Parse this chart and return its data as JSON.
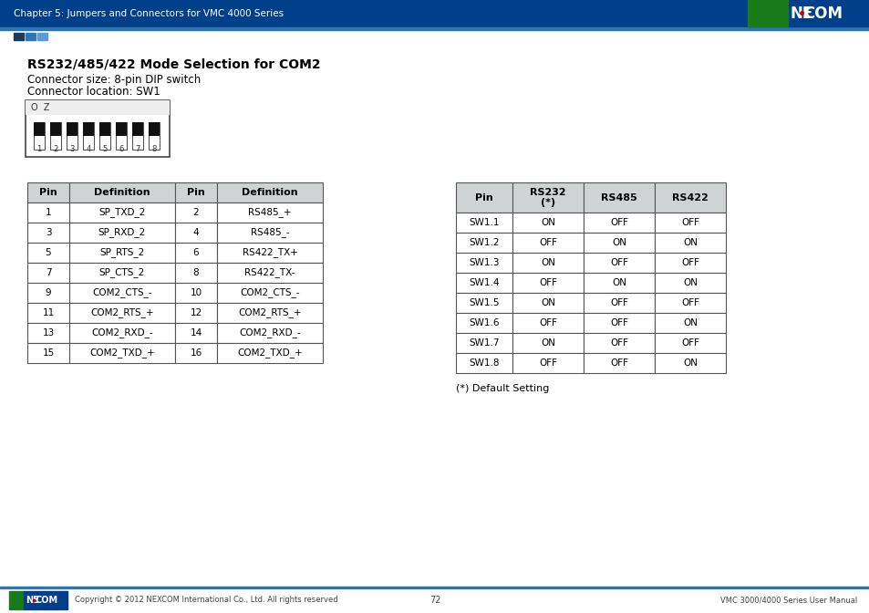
{
  "page_header_left": "Chapter 5: Jumpers and Connectors for VMC 4000 Series",
  "title": "RS232/485/422 Mode Selection for COM2",
  "connector_size": "Connector size: 8-pin DIP switch",
  "connector_location": "Connector location: SW1",
  "table1_headers": [
    "Pin",
    "Definition",
    "Pin",
    "Definition"
  ],
  "table1_rows": [
    [
      "1",
      "SP_TXD_2",
      "2",
      "RS485_+"
    ],
    [
      "3",
      "SP_RXD_2",
      "4",
      "RS485_-"
    ],
    [
      "5",
      "SP_RTS_2",
      "6",
      "RS422_TX+"
    ],
    [
      "7",
      "SP_CTS_2",
      "8",
      "RS422_TX-"
    ],
    [
      "9",
      "COM2_CTS_-",
      "10",
      "COM2_CTS_-"
    ],
    [
      "11",
      "COM2_RTS_+",
      "12",
      "COM2_RTS_+"
    ],
    [
      "13",
      "COM2_RXD_-",
      "14",
      "COM2_RXD_-"
    ],
    [
      "15",
      "COM2_TXD_+",
      "16",
      "COM2_TXD_+"
    ]
  ],
  "table2_headers": [
    "Pin",
    "RS232\n(*)",
    "RS485",
    "RS422"
  ],
  "table2_rows": [
    [
      "SW1.1",
      "ON",
      "OFF",
      "OFF"
    ],
    [
      "SW1.2",
      "OFF",
      "ON",
      "ON"
    ],
    [
      "SW1.3",
      "ON",
      "OFF",
      "OFF"
    ],
    [
      "SW1.4",
      "OFF",
      "ON",
      "ON"
    ],
    [
      "SW1.5",
      "ON",
      "OFF",
      "OFF"
    ],
    [
      "SW1.6",
      "OFF",
      "OFF",
      "ON"
    ],
    [
      "SW1.7",
      "ON",
      "OFF",
      "OFF"
    ],
    [
      "SW1.8",
      "OFF",
      "OFF",
      "ON"
    ]
  ],
  "default_note": "(*) Default Setting",
  "footer_left": "Copyright © 2012 NEXCOM International Co., Ltd. All rights reserved",
  "footer_center": "72",
  "footer_right": "VMC 3000/4000 Series User Manual",
  "table_header_bg": "#d0d3d4",
  "table_border_color": "#555555",
  "accent_blue": "#2e75b6",
  "red_dot_color": "#cc0000",
  "bg_color": "#ffffff",
  "text_color": "#000000",
  "nexcom_blue": "#003f8a",
  "nexcom_green": "#1a7a1a",
  "light_blue": "#5b9bd5",
  "dark_square": "#1a3a5c"
}
